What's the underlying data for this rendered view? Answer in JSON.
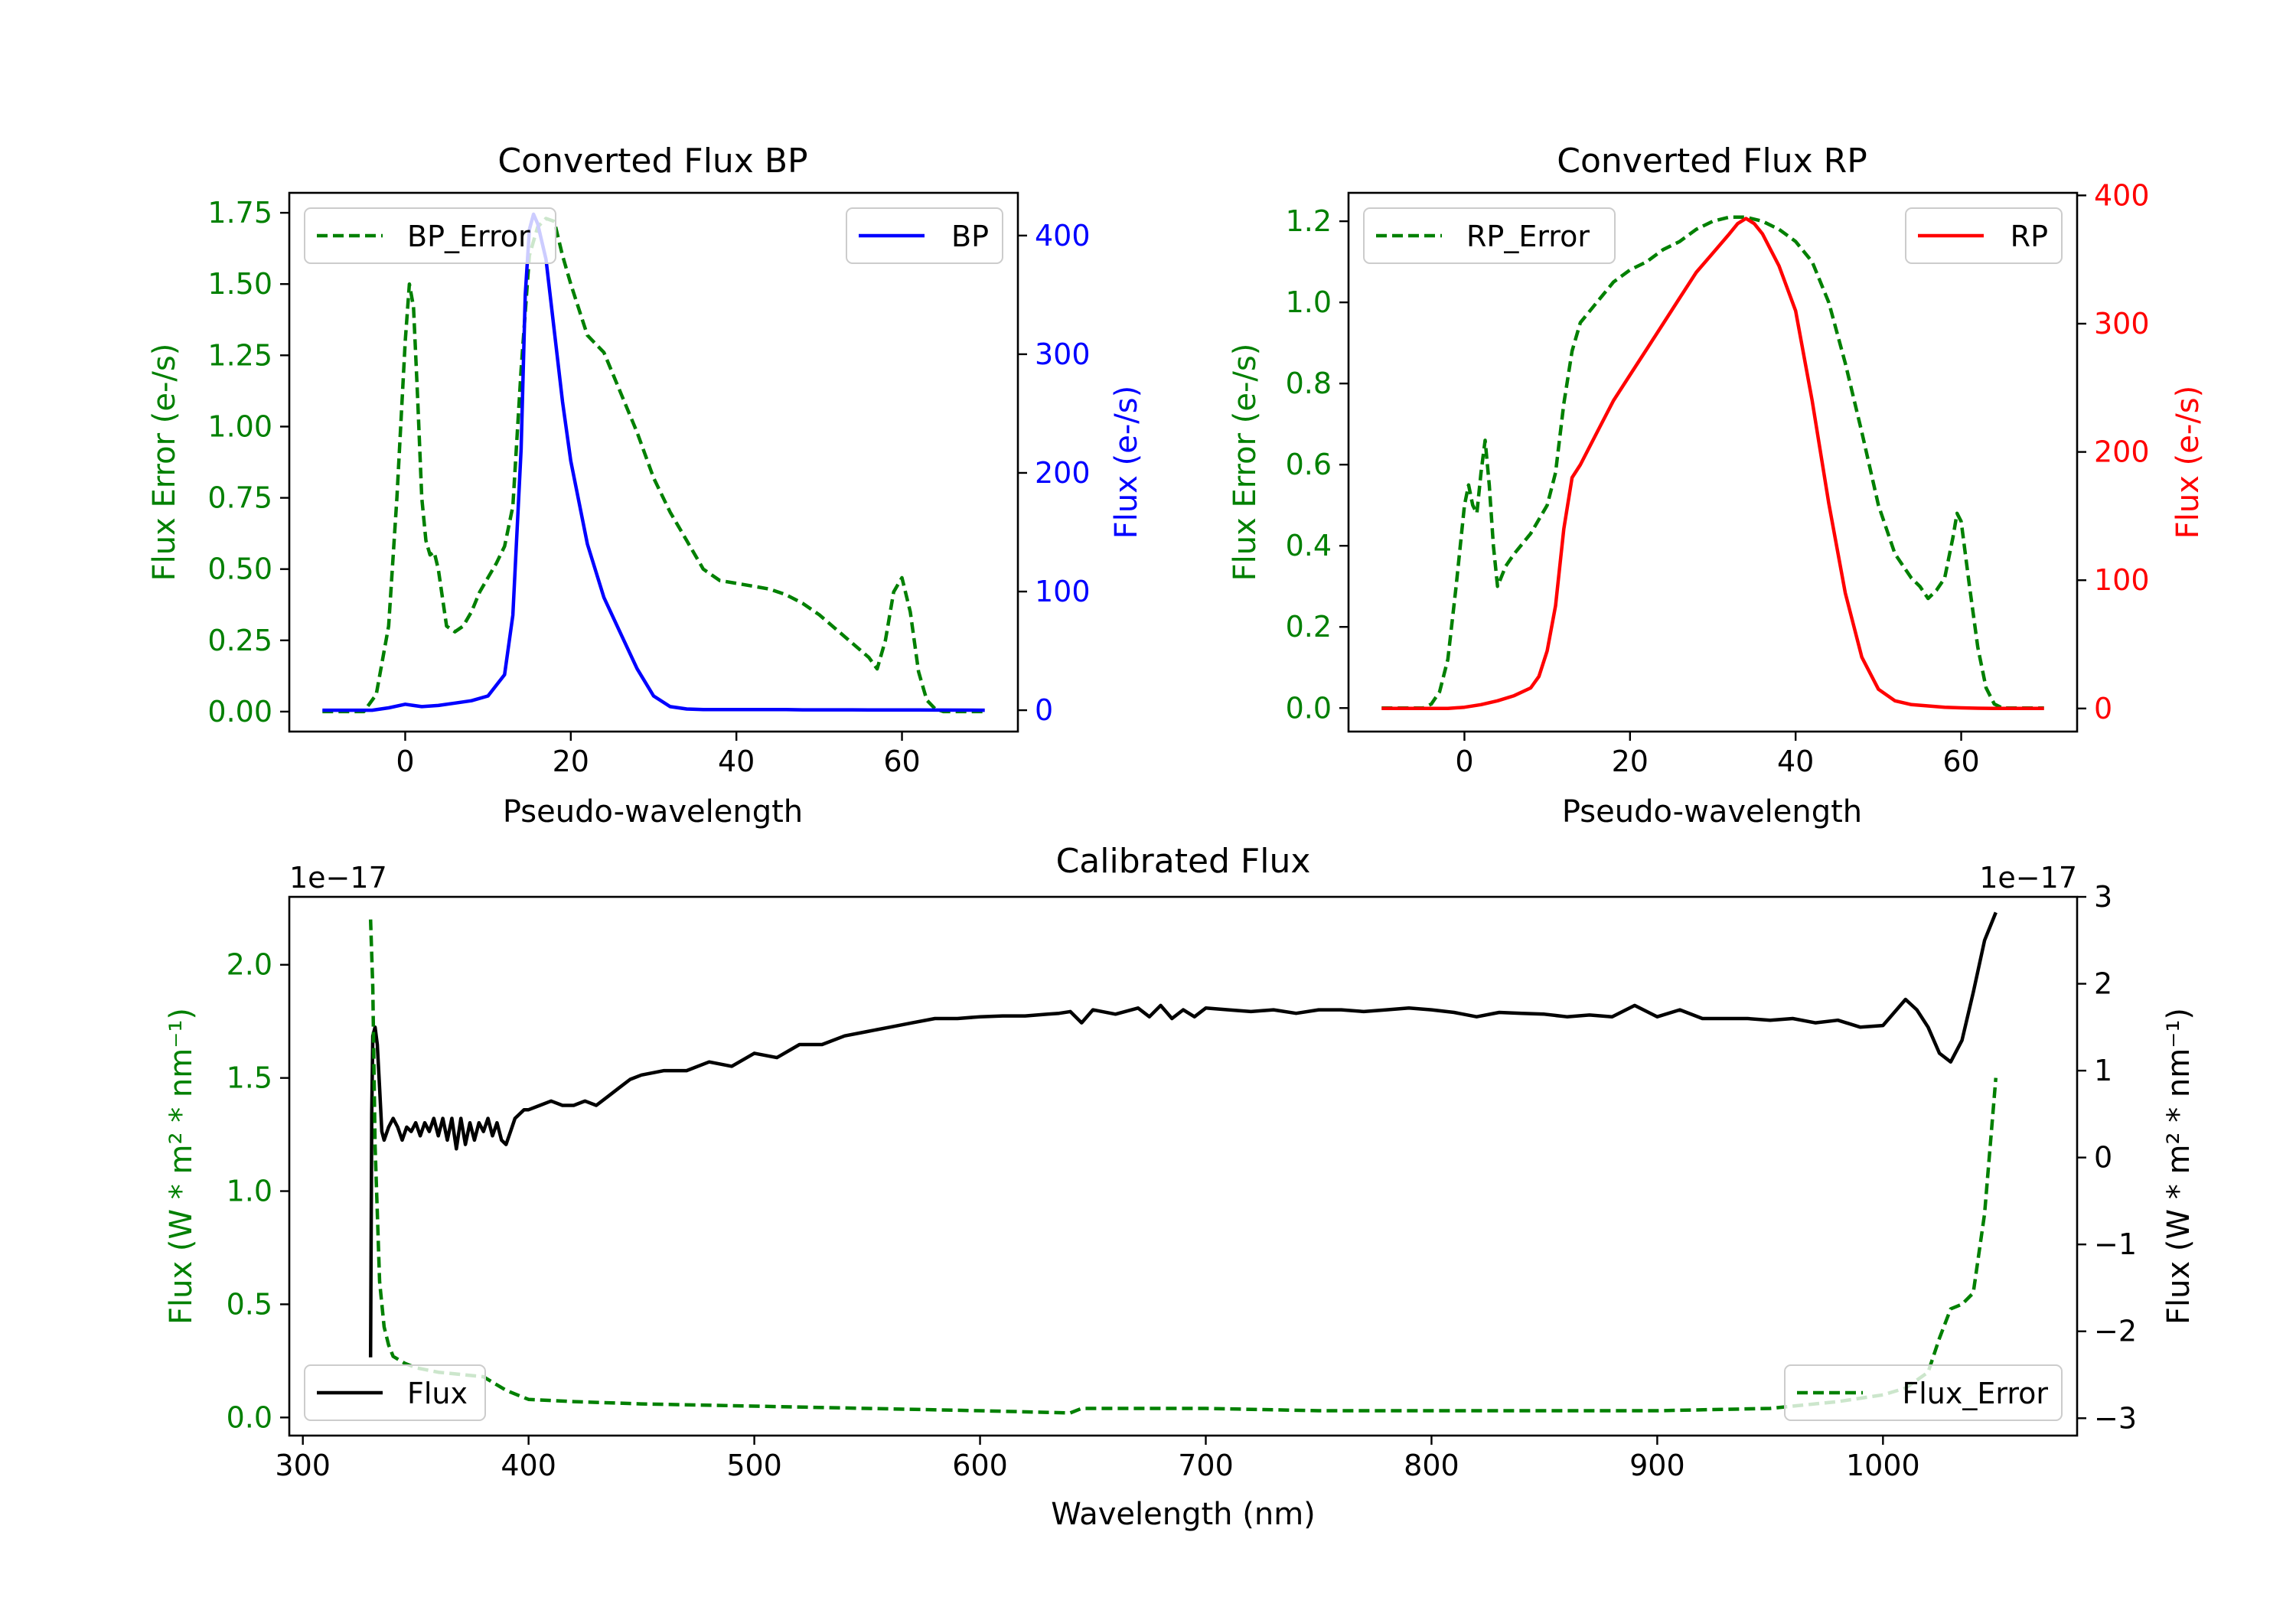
{
  "colors": {
    "green": "#008000",
    "blue": "#0000ff",
    "red": "#ff0000",
    "black": "#000000"
  },
  "chart_data": [
    {
      "id": "bp",
      "type": "line",
      "title": "Converted Flux BP",
      "xlabel": "Pseudo-wavelength",
      "ylabel_left": "Flux Error (e-/s)",
      "ylabel_right": "Flux (e-/s)",
      "xlim": [
        -14,
        74
      ],
      "ylim_left": [
        -0.07,
        1.82
      ],
      "ylim_right": [
        -18,
        436
      ],
      "xticks": [
        0,
        20,
        40,
        60
      ],
      "xtick_labels": [
        "0",
        "20",
        "40",
        "60"
      ],
      "yticks_left": [
        0,
        0.25,
        0.5,
        0.75,
        1.0,
        1.25,
        1.5,
        1.75
      ],
      "ytick_labels_left": [
        "0.00",
        "0.25",
        "0.50",
        "0.75",
        "1.00",
        "1.25",
        "1.50",
        "1.75"
      ],
      "yticks_right": [
        0,
        100,
        200,
        300,
        400
      ],
      "ytick_labels_right": [
        "0",
        "100",
        "200",
        "300",
        "400"
      ],
      "legend_left": "BP_Error",
      "legend_right": "BP",
      "series": [
        {
          "name": "BP_Error",
          "axis": "left",
          "style": "dashed",
          "color": "green",
          "x": [
            -10,
            -5,
            -3.5,
            -2,
            -1,
            0,
            0.5,
            1,
            1.5,
            2,
            2.5,
            3,
            3.5,
            4,
            5,
            6,
            7,
            8,
            9,
            10,
            11,
            12,
            13,
            14,
            15,
            16,
            17,
            18,
            19,
            20,
            22,
            24,
            26,
            28,
            30,
            32,
            34,
            36,
            38,
            40,
            42,
            44,
            46,
            48,
            50,
            52,
            54,
            56,
            57,
            58,
            59,
            60,
            61,
            62,
            63,
            64,
            65,
            68,
            70
          ],
          "y": [
            0,
            0,
            0.06,
            0.3,
            0.75,
            1.3,
            1.5,
            1.42,
            1.1,
            0.75,
            0.6,
            0.55,
            0.56,
            0.5,
            0.3,
            0.28,
            0.3,
            0.35,
            0.42,
            0.47,
            0.52,
            0.58,
            0.72,
            1.2,
            1.6,
            1.7,
            1.73,
            1.72,
            1.6,
            1.5,
            1.32,
            1.26,
            1.12,
            0.98,
            0.82,
            0.7,
            0.6,
            0.5,
            0.46,
            0.45,
            0.44,
            0.43,
            0.41,
            0.38,
            0.34,
            0.29,
            0.24,
            0.19,
            0.15,
            0.25,
            0.42,
            0.47,
            0.35,
            0.14,
            0.04,
            0.01,
            0,
            0,
            0
          ]
        },
        {
          "name": "BP",
          "axis": "right",
          "style": "solid",
          "color": "blue",
          "x": [
            -10,
            -4,
            -2,
            0,
            1,
            2,
            4,
            6,
            8,
            10,
            12,
            13,
            14,
            14.5,
            15,
            15.5,
            16,
            17,
            18,
            19,
            20,
            22,
            24,
            26,
            28,
            30,
            32,
            34,
            36,
            38,
            40,
            42,
            44,
            46,
            48,
            50,
            52,
            54,
            56,
            58,
            60,
            62,
            64,
            70
          ],
          "y": [
            0,
            0,
            2,
            5,
            4,
            3,
            4,
            6,
            8,
            12,
            30,
            80,
            220,
            350,
            405,
            418,
            410,
            380,
            320,
            260,
            210,
            140,
            95,
            65,
            35,
            12,
            3,
            1,
            0.5,
            0.5,
            0.5,
            0.5,
            0.5,
            0.5,
            0.3,
            0.3,
            0.3,
            0.3,
            0.2,
            0.2,
            0.2,
            0.2,
            0.1,
            0
          ],
          "note": "values approximate"
        }
      ]
    },
    {
      "id": "rp",
      "type": "line",
      "title": "Converted Flux RP",
      "xlabel": "Pseudo-wavelength",
      "ylabel_left": "Flux Error (e-/s)",
      "ylabel_right": "Flux (e-/s)",
      "xlim": [
        -14,
        74
      ],
      "ylim_left": [
        -0.058,
        1.27
      ],
      "ylim_right": [
        -18,
        402
      ],
      "xticks": [
        0,
        20,
        40,
        60
      ],
      "xtick_labels": [
        "0",
        "20",
        "40",
        "60"
      ],
      "yticks_left": [
        0,
        0.2,
        0.4,
        0.6,
        0.8,
        1.0,
        1.2
      ],
      "ytick_labels_left": [
        "0.0",
        "0.2",
        "0.4",
        "0.6",
        "0.8",
        "1.0",
        "1.2"
      ],
      "yticks_right": [
        0,
        100,
        200,
        300,
        400
      ],
      "ytick_labels_right": [
        "0",
        "100",
        "200",
        "300",
        "400"
      ],
      "legend_left": "RP_Error",
      "legend_right": "RP",
      "series": [
        {
          "name": "RP_Error",
          "axis": "left",
          "style": "dashed",
          "color": "green",
          "x": [
            -10,
            -5,
            -4,
            -3,
            -2,
            -1,
            0,
            0.5,
            1,
            1.5,
            2,
            2.5,
            3,
            3.5,
            4,
            5,
            6,
            8,
            10,
            11,
            12,
            13,
            14,
            16,
            18,
            20,
            22,
            24,
            26,
            28,
            30,
            32,
            34,
            36,
            38,
            40,
            42,
            44,
            46,
            48,
            50,
            52,
            54,
            55,
            56,
            57,
            58,
            59,
            59.5,
            60,
            61,
            62,
            63,
            64,
            65,
            68,
            70
          ],
          "y": [
            0,
            0,
            0.01,
            0.04,
            0.12,
            0.3,
            0.5,
            0.55,
            0.5,
            0.48,
            0.58,
            0.66,
            0.55,
            0.4,
            0.3,
            0.35,
            0.38,
            0.43,
            0.5,
            0.58,
            0.75,
            0.88,
            0.95,
            1.0,
            1.05,
            1.08,
            1.1,
            1.13,
            1.15,
            1.18,
            1.2,
            1.21,
            1.21,
            1.2,
            1.18,
            1.15,
            1.1,
            1.0,
            0.85,
            0.68,
            0.5,
            0.38,
            0.32,
            0.3,
            0.27,
            0.29,
            0.32,
            0.42,
            0.48,
            0.46,
            0.3,
            0.15,
            0.05,
            0.01,
            0,
            0,
            0
          ],
          "note": "values approximate"
        },
        {
          "name": "RP",
          "axis": "right",
          "style": "solid",
          "color": "red",
          "x": [
            -10,
            -4,
            -2,
            0,
            2,
            4,
            6,
            8,
            9,
            10,
            11,
            12,
            13,
            14,
            16,
            18,
            20,
            22,
            24,
            26,
            28,
            30,
            32,
            33,
            34,
            35,
            36,
            38,
            40,
            42,
            44,
            46,
            48,
            50,
            52,
            54,
            56,
            58,
            60,
            62,
            64,
            70
          ],
          "y": [
            0,
            0,
            0,
            1,
            3,
            6,
            10,
            16,
            25,
            45,
            80,
            140,
            180,
            190,
            215,
            240,
            260,
            280,
            300,
            320,
            340,
            355,
            370,
            378,
            382,
            378,
            370,
            345,
            310,
            240,
            160,
            90,
            40,
            15,
            6,
            3,
            2,
            1,
            0.5,
            0.2,
            0,
            0
          ],
          "note": "values approximate"
        }
      ]
    },
    {
      "id": "calibrated",
      "type": "line",
      "title": "Calibrated Flux",
      "xlabel": "Wavelength (nm)",
      "ylabel_left": "Flux (W * m² * nm⁻¹)",
      "ylabel_right": "Flux (W * m² * nm⁻¹)",
      "offset_left": "1e−17",
      "offset_right": "1e−17",
      "xlim": [
        294,
        1086
      ],
      "ylim_left": [
        -0.08,
        2.3
      ],
      "ylim_right": [
        -3.2,
        3.0
      ],
      "xticks": [
        300,
        400,
        500,
        600,
        700,
        800,
        900,
        1000
      ],
      "xtick_labels": [
        "300",
        "400",
        "500",
        "600",
        "700",
        "800",
        "900",
        "1000"
      ],
      "yticks_left": [
        0,
        0.5,
        1.0,
        1.5,
        2.0
      ],
      "ytick_labels_left": [
        "0.0",
        "0.5",
        "1.0",
        "1.5",
        "2.0"
      ],
      "yticks_right": [
        -3,
        -2,
        -1,
        0,
        1,
        2,
        3
      ],
      "ytick_labels_right": [
        "−3",
        "−2",
        "−1",
        "0",
        "1",
        "2",
        "3"
      ],
      "legend_left": "Flux",
      "legend_right": "Flux_Error",
      "series": [
        {
          "name": "Flux",
          "axis": "right",
          "style": "solid",
          "color": "black",
          "x": [
            330,
            330.5,
            331,
            332,
            333,
            334,
            335,
            336,
            338,
            340,
            342,
            344,
            346,
            348,
            350,
            352,
            354,
            356,
            358,
            360,
            362,
            364,
            366,
            368,
            370,
            372,
            374,
            376,
            378,
            380,
            382,
            384,
            386,
            388,
            390,
            392,
            394,
            396,
            398,
            400,
            405,
            410,
            415,
            420,
            425,
            430,
            435,
            440,
            445,
            450,
            460,
            470,
            480,
            490,
            500,
            510,
            520,
            530,
            540,
            550,
            560,
            570,
            580,
            590,
            600,
            610,
            620,
            630,
            635,
            640,
            645,
            650,
            660,
            670,
            675,
            680,
            685,
            690,
            695,
            700,
            710,
            720,
            730,
            740,
            750,
            760,
            770,
            780,
            790,
            800,
            810,
            820,
            830,
            840,
            850,
            860,
            870,
            880,
            890,
            900,
            910,
            920,
            930,
            940,
            950,
            960,
            970,
            980,
            990,
            1000,
            1010,
            1015,
            1020,
            1025,
            1030,
            1035,
            1040,
            1045,
            1050
          ],
          "y": [
            -2.3,
            0.5,
            1.4,
            1.5,
            1.3,
            0.8,
            0.3,
            0.2,
            0.35,
            0.45,
            0.35,
            0.2,
            0.35,
            0.3,
            0.4,
            0.25,
            0.4,
            0.3,
            0.45,
            0.25,
            0.45,
            0.2,
            0.45,
            0.1,
            0.45,
            0.15,
            0.4,
            0.2,
            0.4,
            0.3,
            0.45,
            0.25,
            0.4,
            0.2,
            0.15,
            0.3,
            0.45,
            0.5,
            0.55,
            0.55,
            0.6,
            0.65,
            0.6,
            0.6,
            0.65,
            0.6,
            0.7,
            0.8,
            0.9,
            0.95,
            1.0,
            1.0,
            1.1,
            1.05,
            1.2,
            1.15,
            1.3,
            1.3,
            1.4,
            1.45,
            1.5,
            1.55,
            1.6,
            1.6,
            1.62,
            1.63,
            1.63,
            1.65,
            1.66,
            1.68,
            1.55,
            1.7,
            1.65,
            1.72,
            1.62,
            1.75,
            1.6,
            1.7,
            1.62,
            1.72,
            1.7,
            1.68,
            1.7,
            1.66,
            1.7,
            1.7,
            1.68,
            1.7,
            1.72,
            1.7,
            1.67,
            1.62,
            1.67,
            1.66,
            1.65,
            1.62,
            1.64,
            1.62,
            1.75,
            1.62,
            1.7,
            1.6,
            1.6,
            1.6,
            1.58,
            1.6,
            1.55,
            1.58,
            1.5,
            1.52,
            1.82,
            1.7,
            1.5,
            1.2,
            1.1,
            1.35,
            1.9,
            2.5,
            2.82
          ],
          "note": "values approximate"
        },
        {
          "name": "Flux_Error",
          "axis": "left",
          "style": "dashed",
          "color": "green",
          "x": [
            330,
            331,
            332,
            334,
            336,
            338,
            340,
            345,
            350,
            360,
            370,
            380,
            385,
            390,
            395,
            400,
            420,
            450,
            500,
            550,
            600,
            640,
            645,
            700,
            750,
            800,
            850,
            900,
            950,
            960,
            980,
            1000,
            1010,
            1020,
            1025,
            1030,
            1035,
            1040,
            1045,
            1050
          ],
          "y": [
            2.2,
            1.9,
            1.2,
            0.6,
            0.4,
            0.32,
            0.27,
            0.24,
            0.22,
            0.2,
            0.19,
            0.18,
            0.15,
            0.12,
            0.1,
            0.08,
            0.07,
            0.06,
            0.05,
            0.04,
            0.03,
            0.02,
            0.04,
            0.04,
            0.03,
            0.03,
            0.03,
            0.03,
            0.04,
            0.05,
            0.07,
            0.1,
            0.13,
            0.2,
            0.35,
            0.48,
            0.5,
            0.55,
            0.9,
            1.5
          ],
          "note": "values approximate"
        }
      ]
    }
  ]
}
